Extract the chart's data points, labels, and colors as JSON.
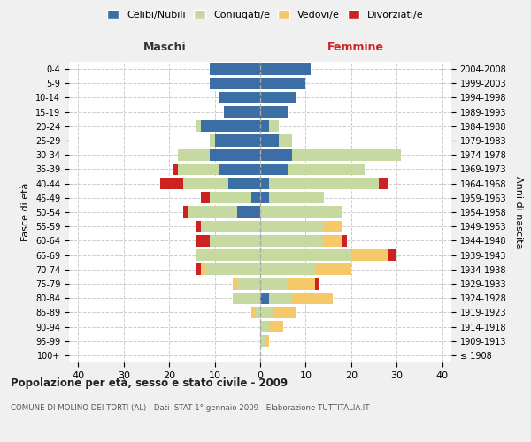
{
  "age_groups": [
    "100+",
    "95-99",
    "90-94",
    "85-89",
    "80-84",
    "75-79",
    "70-74",
    "65-69",
    "60-64",
    "55-59",
    "50-54",
    "45-49",
    "40-44",
    "35-39",
    "30-34",
    "25-29",
    "20-24",
    "15-19",
    "10-14",
    "5-9",
    "0-4"
  ],
  "birth_years": [
    "≤ 1908",
    "1909-1913",
    "1914-1918",
    "1919-1923",
    "1924-1928",
    "1929-1933",
    "1934-1938",
    "1939-1943",
    "1944-1948",
    "1949-1953",
    "1954-1958",
    "1959-1963",
    "1964-1968",
    "1969-1973",
    "1974-1978",
    "1979-1983",
    "1984-1988",
    "1989-1993",
    "1994-1998",
    "1999-2003",
    "2004-2008"
  ],
  "males": {
    "celibe": [
      0,
      0,
      0,
      0,
      0,
      0,
      0,
      0,
      0,
      0,
      5,
      2,
      7,
      9,
      11,
      10,
      13,
      8,
      9,
      11,
      11
    ],
    "coniugato": [
      0,
      0,
      0,
      1,
      6,
      5,
      12,
      14,
      11,
      13,
      11,
      9,
      10,
      9,
      7,
      1,
      1,
      0,
      0,
      0,
      0
    ],
    "vedovo": [
      0,
      0,
      0,
      1,
      0,
      1,
      1,
      0,
      0,
      0,
      0,
      0,
      0,
      0,
      0,
      0,
      0,
      0,
      0,
      0,
      0
    ],
    "divorziato": [
      0,
      0,
      0,
      0,
      0,
      0,
      1,
      0,
      3,
      1,
      1,
      2,
      5,
      1,
      0,
      0,
      0,
      0,
      0,
      0,
      0
    ]
  },
  "females": {
    "nubile": [
      0,
      0,
      0,
      0,
      2,
      0,
      0,
      0,
      0,
      0,
      0,
      2,
      2,
      6,
      7,
      4,
      2,
      6,
      8,
      10,
      11
    ],
    "coniugata": [
      0,
      1,
      2,
      3,
      5,
      6,
      12,
      20,
      14,
      14,
      18,
      12,
      24,
      17,
      24,
      3,
      2,
      0,
      0,
      0,
      0
    ],
    "vedova": [
      0,
      1,
      3,
      5,
      9,
      6,
      8,
      8,
      4,
      4,
      0,
      0,
      0,
      0,
      0,
      0,
      0,
      0,
      0,
      0,
      0
    ],
    "divorziata": [
      0,
      0,
      0,
      0,
      0,
      1,
      0,
      2,
      1,
      0,
      0,
      0,
      2,
      0,
      0,
      0,
      0,
      0,
      0,
      0,
      0
    ]
  },
  "colors": {
    "celibe": "#3a6ea5",
    "coniugato": "#c5d9a0",
    "vedovo": "#f5c96a",
    "divorziato": "#cc2222"
  },
  "xlim": 42,
  "title": "Popolazione per età, sesso e stato civile - 2009",
  "subtitle": "COMUNE DI MOLINO DEI TORTI (AL) - Dati ISTAT 1° gennaio 2009 - Elaborazione TUTTITALIA.IT",
  "ylabel_left": "Fasce di età",
  "ylabel_right": "Anni di nascita",
  "xlabel_left": "Maschi",
  "xlabel_right": "Femmine",
  "bg_color": "#f0f0f0",
  "plot_bg_color": "#ffffff"
}
